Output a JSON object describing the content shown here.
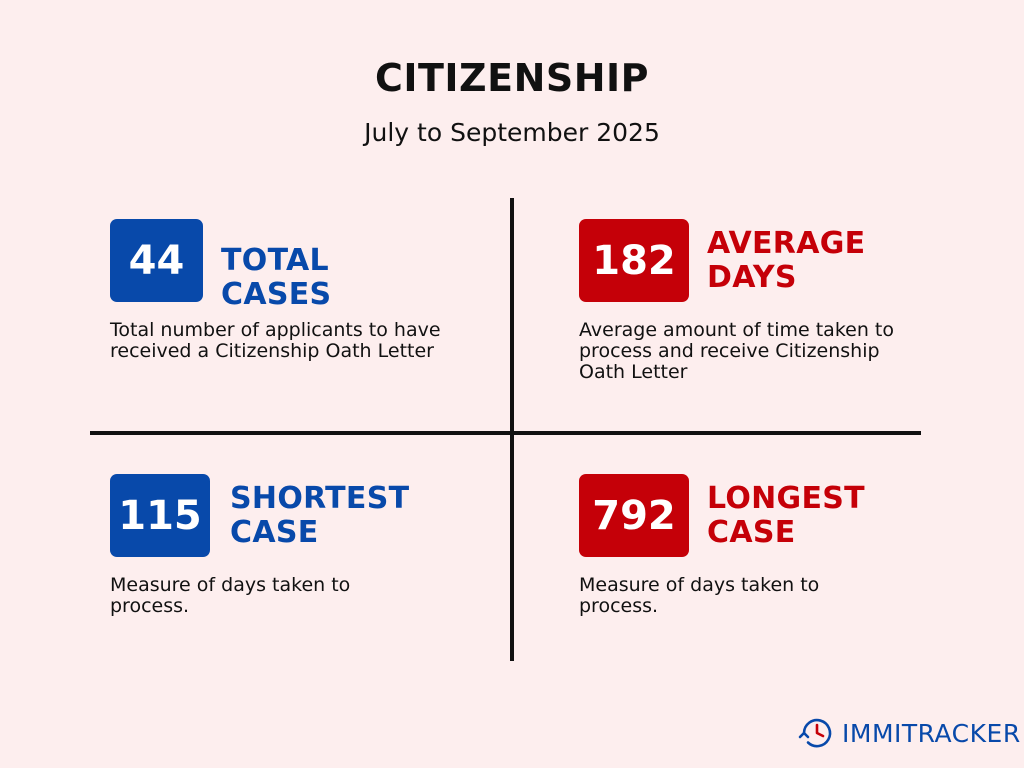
{
  "header": {
    "title": "CITIZENSHIP",
    "subtitle": "July to September 2025"
  },
  "stats": [
    {
      "value": "44",
      "heading_lines": [
        "TOTAL CASES"
      ],
      "description": "Total number of applicants to have received a Citizenship Oath Letter",
      "color": "#0849aa"
    },
    {
      "value": "182",
      "heading_lines": [
        "AVERAGE",
        "DAYS"
      ],
      "description": "Average amount of time taken to process and receive Citizenship Oath Letter",
      "color": "#c50008"
    },
    {
      "value": "115",
      "heading_lines": [
        "SHORTEST",
        "CASE"
      ],
      "description": "Measure of days taken to process.",
      "color": "#0849aa"
    },
    {
      "value": "792",
      "heading_lines": [
        "LONGEST",
        "CASE"
      ],
      "description": "Measure of days taken to process.",
      "color": "#c50008"
    }
  ],
  "logo": {
    "text": "IMMITRACKER",
    "icon": "clock-refresh-icon",
    "color": "#0849aa"
  },
  "colors": {
    "background": "#fdeeee",
    "blue": "#0849aa",
    "red": "#c50008"
  }
}
